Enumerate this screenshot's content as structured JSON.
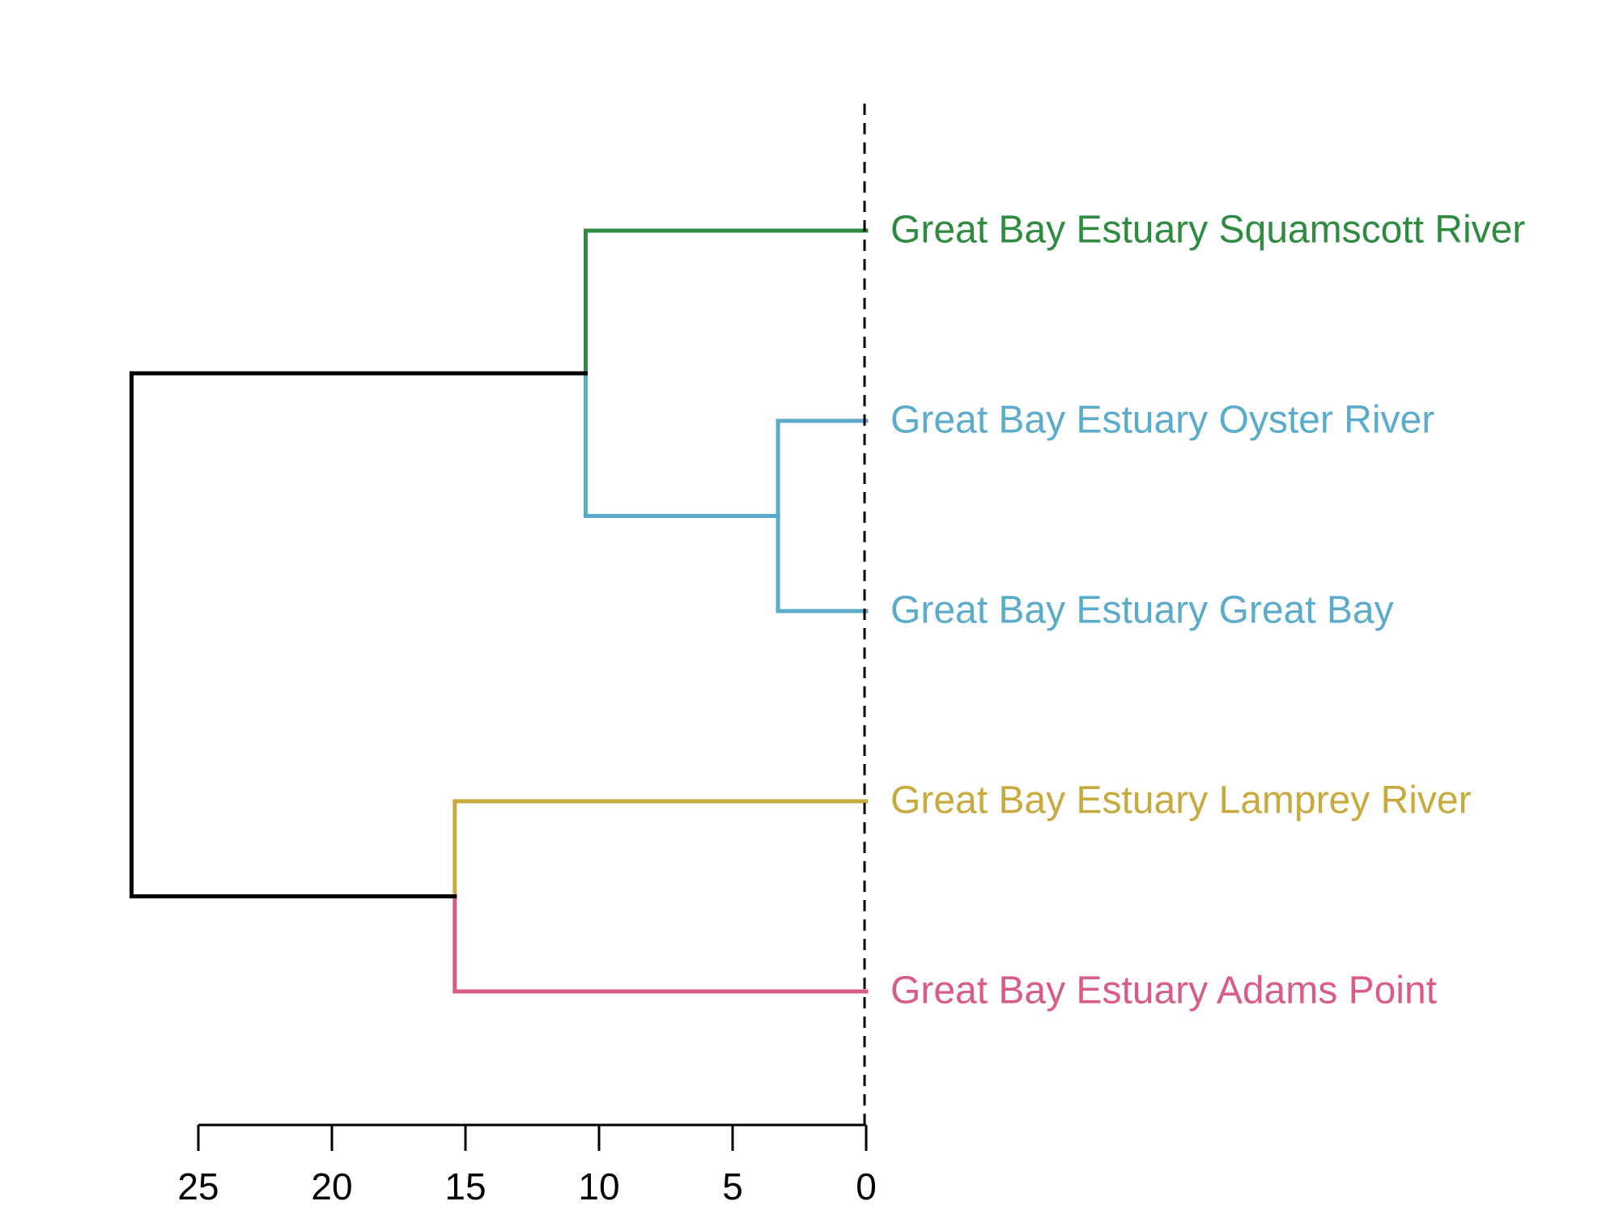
{
  "chart_data": {
    "type": "dendrogram",
    "title": "",
    "xlabel": "",
    "ylabel": "",
    "orientation": "horizontal",
    "xlim": [
      0,
      25
    ],
    "x_ticks": [
      25,
      20,
      15,
      10,
      5,
      0
    ],
    "x_tick_labels": [
      "25",
      "20",
      "15",
      "10",
      "5",
      "0"
    ],
    "cut_height": 0,
    "leaves": [
      {
        "id": "squamscott",
        "label": "Great Bay Estuary Squamscott River",
        "color": "#2E8B3F"
      },
      {
        "id": "oyster",
        "label": "Great Bay Estuary Oyster River",
        "color": "#5BABCB"
      },
      {
        "id": "greatbay",
        "label": "Great Bay Estuary Great Bay",
        "color": "#5BABCB"
      },
      {
        "id": "lamprey",
        "label": "Great Bay Estuary Lamprey River",
        "color": "#C9AA3E"
      },
      {
        "id": "adams",
        "label": "Great Bay Estuary Adams Point",
        "color": "#D95B87"
      }
    ],
    "merges": [
      {
        "id": "m1",
        "left": "oyster",
        "right": "greatbay",
        "height": 3.3,
        "color": "#5BABCB"
      },
      {
        "id": "m2",
        "left": "squamscott",
        "right": "m1",
        "height": 10.5,
        "color": "#000000"
      },
      {
        "id": "m3",
        "left": "lamprey",
        "right": "adams",
        "height": 15.4,
        "color": "#000000"
      },
      {
        "id": "m4",
        "left": "m2",
        "right": "m3",
        "height": 27.5,
        "color": "#000000"
      }
    ],
    "line_color_default": "#000000"
  }
}
